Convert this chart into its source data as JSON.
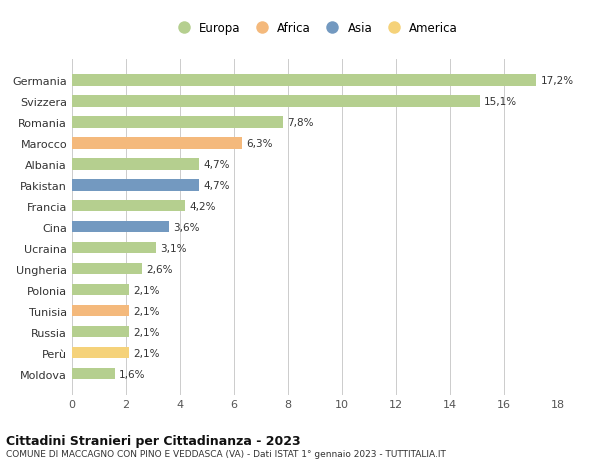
{
  "categories": [
    "Germania",
    "Svizzera",
    "Romania",
    "Marocco",
    "Albania",
    "Pakistan",
    "Francia",
    "Cina",
    "Ucraina",
    "Ungheria",
    "Polonia",
    "Tunisia",
    "Russia",
    "Perù",
    "Moldova"
  ],
  "values": [
    17.2,
    15.1,
    7.8,
    6.3,
    4.7,
    4.7,
    4.2,
    3.6,
    3.1,
    2.6,
    2.1,
    2.1,
    2.1,
    2.1,
    1.6
  ],
  "labels": [
    "17,2%",
    "15,1%",
    "7,8%",
    "6,3%",
    "4,7%",
    "4,7%",
    "4,2%",
    "3,6%",
    "3,1%",
    "2,6%",
    "2,1%",
    "2,1%",
    "2,1%",
    "2,1%",
    "1,6%"
  ],
  "continents": [
    "Europa",
    "Europa",
    "Europa",
    "Africa",
    "Europa",
    "Asia",
    "Europa",
    "Asia",
    "Europa",
    "Europa",
    "Europa",
    "Africa",
    "Europa",
    "America",
    "Europa"
  ],
  "colors": {
    "Europa": "#b5cf8f",
    "Africa": "#f4b97c",
    "Asia": "#7399c0",
    "America": "#f5d27a"
  },
  "legend_order": [
    "Europa",
    "Africa",
    "Asia",
    "America"
  ],
  "xlim": [
    0,
    18
  ],
  "xticks": [
    0,
    2,
    4,
    6,
    8,
    10,
    12,
    14,
    16,
    18
  ],
  "title": "Cittadini Stranieri per Cittadinanza - 2023",
  "subtitle": "COMUNE DI MACCAGNO CON PINO E VEDDASCA (VA) - Dati ISTAT 1° gennaio 2023 - TUTTITALIA.IT",
  "background_color": "#ffffff",
  "grid_color": "#cccccc",
  "bar_height": 0.55,
  "label_fontsize": 7.5,
  "ytick_fontsize": 8,
  "xtick_fontsize": 8
}
